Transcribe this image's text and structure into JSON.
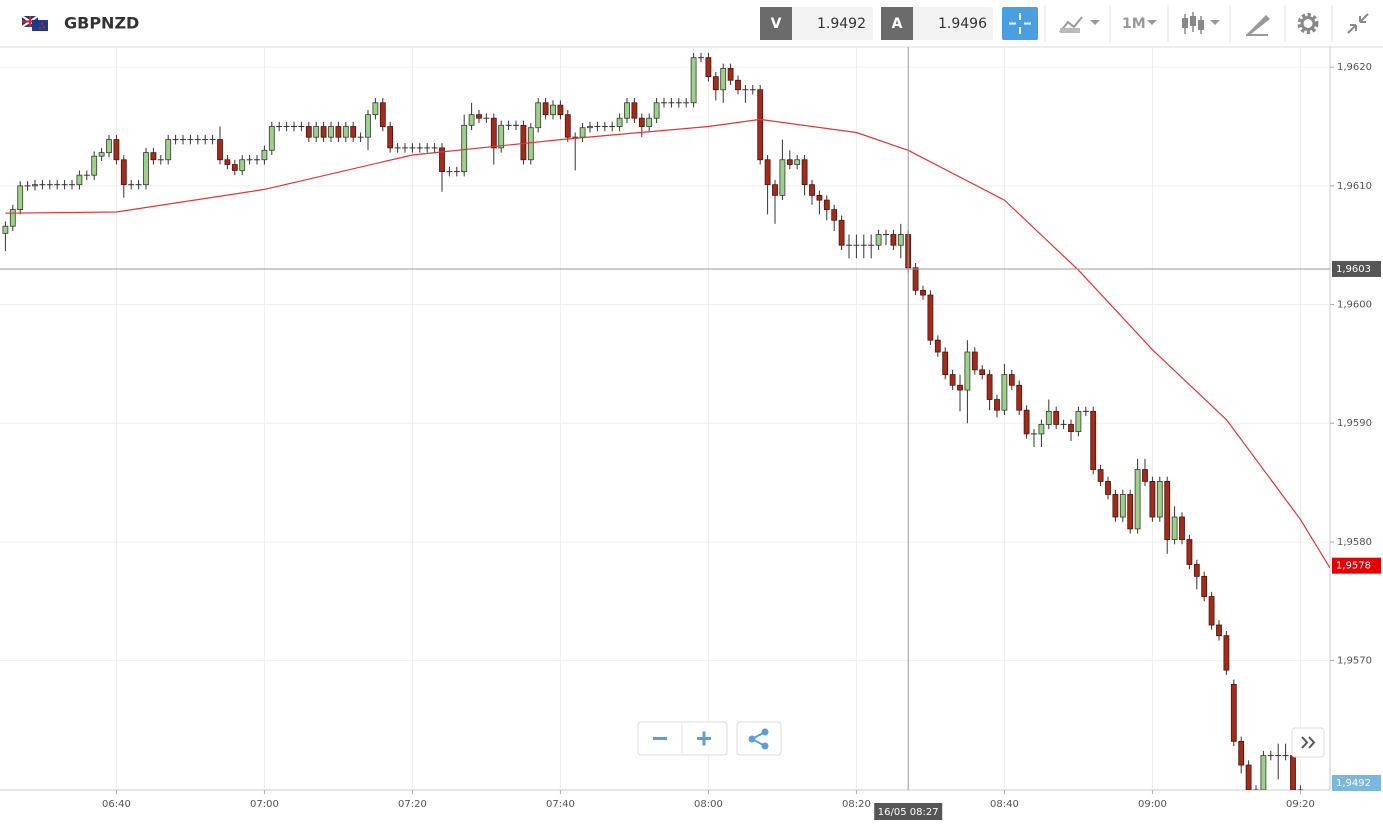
{
  "toolbar": {
    "symbol": "GBPNZD",
    "bid_label": "V",
    "bid": 1.9492,
    "ask_label": "A",
    "ask": 1.9496,
    "timeframe": "1M"
  },
  "chart_data": {
    "type": "candlestick",
    "xlim": [
      "06:24",
      "09:24"
    ],
    "xticks": [
      "06:40",
      "07:00",
      "07:20",
      "07:40",
      "08:00",
      "08:20",
      "08:40",
      "09:00",
      "09:20"
    ],
    "ylim": [
      1.95591,
      1.96217
    ],
    "yticks": [
      {
        "value": 1.962,
        "label": "1,9620"
      },
      {
        "value": 1.961,
        "label": "1,9610"
      },
      {
        "value": 1.96,
        "label": "1,9600"
      },
      {
        "value": 1.959,
        "label": "1,9590"
      },
      {
        "value": 1.958,
        "label": "1,9580"
      },
      {
        "value": 1.957,
        "label": "1,9570"
      }
    ],
    "grid": true,
    "up_color": "#9fcf8f",
    "down_color": "#a32b1b",
    "x": [
      "06:25",
      "06:26",
      "06:27",
      "06:28",
      "06:29",
      "06:30",
      "06:31",
      "06:32",
      "06:33",
      "06:34",
      "06:35",
      "06:36",
      "06:37",
      "06:38",
      "06:39",
      "06:40",
      "06:41",
      "06:42",
      "06:43",
      "06:44",
      "06:45",
      "06:46",
      "06:47",
      "06:48",
      "06:49",
      "06:50",
      "06:51",
      "06:52",
      "06:53",
      "06:54",
      "06:55",
      "06:56",
      "06:57",
      "06:58",
      "06:59",
      "07:00",
      "07:01",
      "07:02",
      "07:03",
      "07:04",
      "07:05",
      "07:06",
      "07:07",
      "07:08",
      "07:09",
      "07:10",
      "07:11",
      "07:12",
      "07:13",
      "07:14",
      "07:15",
      "07:16",
      "07:17",
      "07:18",
      "07:19",
      "07:20",
      "07:21",
      "07:22",
      "07:23",
      "07:24",
      "07:25",
      "07:26",
      "07:27",
      "07:28",
      "07:29",
      "07:30",
      "07:31",
      "07:32",
      "07:33",
      "07:34",
      "07:35",
      "07:36",
      "07:37",
      "07:38",
      "07:39",
      "07:40",
      "07:41",
      "07:42",
      "07:43",
      "07:44",
      "07:45",
      "07:46",
      "07:47",
      "07:48",
      "07:49",
      "07:50",
      "07:51",
      "07:52",
      "07:53",
      "07:54",
      "07:55",
      "07:56",
      "07:57",
      "07:58",
      "07:59",
      "08:00",
      "08:01",
      "08:02",
      "08:03",
      "08:04",
      "08:05",
      "08:06",
      "08:07",
      "08:08",
      "08:09",
      "08:10",
      "08:11",
      "08:12",
      "08:13",
      "08:14",
      "08:15",
      "08:16",
      "08:17",
      "08:18",
      "08:19",
      "08:20",
      "08:21",
      "08:22",
      "08:23",
      "08:24",
      "08:25",
      "08:26",
      "08:27",
      "08:28",
      "08:29",
      "08:30",
      "08:31",
      "08:32",
      "08:33",
      "08:34",
      "08:35",
      "08:36",
      "08:37",
      "08:38",
      "08:39",
      "08:40",
      "08:41",
      "08:42",
      "08:43",
      "08:44",
      "08:45",
      "08:46",
      "08:47",
      "08:48",
      "08:49",
      "08:50",
      "08:51",
      "08:52",
      "08:53",
      "08:54",
      "08:55",
      "08:56",
      "08:57",
      "08:58",
      "08:59",
      "09:00",
      "09:01",
      "09:02",
      "09:03",
      "09:04",
      "09:05",
      "09:06",
      "09:07",
      "09:08",
      "09:09",
      "09:10",
      "09:11",
      "09:12",
      "09:13",
      "09:14",
      "09:15",
      "09:16",
      "09:17",
      "09:18",
      "09:19",
      "09:20"
    ],
    "open": [
      1.9606,
      1.96066,
      1.9608,
      1.961,
      1.961,
      1.96101,
      1.96101,
      1.96101,
      1.96101,
      1.96101,
      1.96101,
      1.96109,
      1.96109,
      1.96125,
      1.96128,
      1.96139,
      1.96122,
      1.96101,
      1.96101,
      1.96101,
      1.96128,
      1.96122,
      1.96122,
      1.96139,
      1.96139,
      1.96139,
      1.96139,
      1.96139,
      1.96139,
      1.96139,
      1.96122,
      1.96118,
      1.96113,
      1.96122,
      1.96122,
      1.96122,
      1.9613,
      1.9615,
      1.9615,
      1.9615,
      1.9615,
      1.9615,
      1.96141,
      1.9615,
      1.96141,
      1.9615,
      1.96141,
      1.9615,
      1.96141,
      1.96141,
      1.9616,
      1.9617,
      1.9615,
      1.96132,
      1.96132,
      1.96132,
      1.96132,
      1.96132,
      1.96132,
      1.96132,
      1.96112,
      1.96112,
      1.96112,
      1.96151,
      1.9616,
      1.96157,
      1.96157,
      1.96132,
      1.96151,
      1.96151,
      1.96151,
      1.96122,
      1.96149,
      1.9617,
      1.9616,
      1.96168,
      1.9616,
      1.96141,
      1.96141,
      1.96149,
      1.9615,
      1.9615,
      1.9615,
      1.9615,
      1.96157,
      1.9617,
      1.96157,
      1.9615,
      1.96157,
      1.9617,
      1.9617,
      1.9617,
      1.9617,
      1.9617,
      1.96208,
      1.96208,
      1.96192,
      1.96181,
      1.96199,
      1.96189,
      1.96181,
      1.96181,
      1.96181,
      1.96122,
      1.96101,
      1.96092,
      1.96122,
      1.96118,
      1.96122,
      1.96101,
      1.96092,
      1.96088,
      1.9608,
      1.96071,
      1.9605,
      1.9605,
      1.9605,
      1.9605,
      1.9605,
      1.96059,
      1.96059,
      1.9605,
      1.96059,
      1.96031,
      1.96012,
      1.96008,
      1.9597,
      1.9596,
      1.95941,
      1.95932,
      1.95928,
      1.9596,
      1.95945,
      1.95941,
      1.9592,
      1.95911,
      1.95941,
      1.95932,
      1.95911,
      1.95891,
      1.95891,
      1.95899,
      1.9591,
      1.95899,
      1.95899,
      1.95893,
      1.9591,
      1.9591,
      1.95861,
      1.95851,
      1.9584,
      1.95821,
      1.9584,
      1.95811,
      1.95861,
      1.95851,
      1.95821,
      1.95851,
      1.95802,
      1.95821,
      1.95802,
      1.95781,
      1.95771,
      1.95754,
      1.9573,
      1.95721,
      1.9568,
      1.95632,
      1.95612,
      1.95591,
      1.95591,
      1.9562,
      1.9562,
      1.9562,
      1.9562,
      1.95591
    ],
    "high": [
      1.9607,
      1.96084,
      1.96104,
      1.96104,
      1.96105,
      1.96105,
      1.96105,
      1.96105,
      1.96105,
      1.96105,
      1.96113,
      1.96113,
      1.96129,
      1.96132,
      1.96143,
      1.96143,
      1.96126,
      1.96105,
      1.96105,
      1.96132,
      1.96132,
      1.96126,
      1.96143,
      1.96143,
      1.96143,
      1.96143,
      1.96143,
      1.96143,
      1.96143,
      1.9615,
      1.96126,
      1.96122,
      1.96126,
      1.96126,
      1.96126,
      1.96134,
      1.96154,
      1.96154,
      1.96154,
      1.96154,
      1.96154,
      1.96154,
      1.96154,
      1.96154,
      1.96154,
      1.96154,
      1.96154,
      1.96154,
      1.96145,
      1.96164,
      1.96174,
      1.96174,
      1.96154,
      1.96136,
      1.96136,
      1.96136,
      1.96136,
      1.96136,
      1.96136,
      1.96136,
      1.96116,
      1.96116,
      1.9616,
      1.9617,
      1.96164,
      1.96161,
      1.96161,
      1.96155,
      1.96155,
      1.96155,
      1.96155,
      1.96153,
      1.96174,
      1.96174,
      1.96172,
      1.96172,
      1.96164,
      1.96145,
      1.96153,
      1.96154,
      1.96154,
      1.96154,
      1.96154,
      1.96161,
      1.96174,
      1.96174,
      1.96161,
      1.96161,
      1.96174,
      1.96174,
      1.96174,
      1.96174,
      1.96174,
      1.96212,
      1.96212,
      1.96212,
      1.96196,
      1.96203,
      1.96203,
      1.96193,
      1.96185,
      1.96185,
      1.96185,
      1.96126,
      1.96105,
      1.96139,
      1.9613,
      1.96126,
      1.96126,
      1.96105,
      1.96096,
      1.96092,
      1.96084,
      1.96075,
      1.96059,
      1.96059,
      1.96059,
      1.96059,
      1.96063,
      1.96063,
      1.96063,
      1.96068,
      1.96063,
      1.96035,
      1.96016,
      1.96012,
      1.95974,
      1.95964,
      1.95945,
      1.95941,
      1.9597,
      1.95964,
      1.95949,
      1.95945,
      1.95924,
      1.9595,
      1.95945,
      1.95936,
      1.95915,
      1.95895,
      1.95903,
      1.9592,
      1.95914,
      1.95903,
      1.95903,
      1.95914,
      1.95914,
      1.95914,
      1.95865,
      1.95855,
      1.95844,
      1.95844,
      1.95844,
      1.9587,
      1.9587,
      1.95855,
      1.95855,
      1.95855,
      1.9583,
      1.95825,
      1.95806,
      1.95785,
      1.95775,
      1.95758,
      1.95734,
      1.95725,
      1.95684,
      1.95636,
      1.95616,
      1.95595,
      1.95624,
      1.95624,
      1.9563,
      1.9563,
      1.9563,
      1.95595
    ],
    "low": [
      1.96045,
      1.96062,
      1.96076,
      1.96096,
      1.96096,
      1.96097,
      1.96097,
      1.96097,
      1.96097,
      1.96097,
      1.96097,
      1.96105,
      1.96105,
      1.96121,
      1.96124,
      1.96118,
      1.9609,
      1.96097,
      1.96097,
      1.96097,
      1.96118,
      1.96118,
      1.96118,
      1.96135,
      1.96135,
      1.96135,
      1.96135,
      1.96135,
      1.96135,
      1.96118,
      1.96114,
      1.96109,
      1.96109,
      1.96118,
      1.96118,
      1.96118,
      1.96126,
      1.96146,
      1.96146,
      1.96146,
      1.96146,
      1.96137,
      1.96137,
      1.96137,
      1.96137,
      1.96137,
      1.96137,
      1.96137,
      1.96137,
      1.9613,
      1.96156,
      1.96146,
      1.96128,
      1.96128,
      1.96128,
      1.96128,
      1.96128,
      1.96128,
      1.96128,
      1.96095,
      1.96108,
      1.96108,
      1.96108,
      1.96147,
      1.96153,
      1.96153,
      1.96118,
      1.96128,
      1.96147,
      1.96147,
      1.96118,
      1.96118,
      1.96145,
      1.96156,
      1.96156,
      1.96156,
      1.96137,
      1.96113,
      1.96137,
      1.96145,
      1.96146,
      1.96146,
      1.96146,
      1.96146,
      1.96153,
      1.96153,
      1.96141,
      1.96146,
      1.96153,
      1.96166,
      1.96166,
      1.96166,
      1.96166,
      1.96166,
      1.96204,
      1.96188,
      1.96172,
      1.9617,
      1.96185,
      1.96177,
      1.9617,
      1.96177,
      1.96118,
      1.96076,
      1.96068,
      1.96088,
      1.96114,
      1.96114,
      1.96092,
      1.96084,
      1.96076,
      1.96071,
      1.96062,
      1.96046,
      1.96039,
      1.96039,
      1.96039,
      1.96039,
      1.96046,
      1.9605,
      1.96046,
      1.96039,
      1.96027,
      1.96008,
      1.96004,
      1.95966,
      1.95956,
      1.95937,
      1.95928,
      1.9591,
      1.959,
      1.95941,
      1.95937,
      1.95911,
      1.95905,
      1.95907,
      1.95928,
      1.95907,
      1.95887,
      1.9588,
      1.9588,
      1.95895,
      1.95895,
      1.95895,
      1.95885,
      1.95889,
      1.95906,
      1.95857,
      1.95847,
      1.95836,
      1.95817,
      1.95817,
      1.95807,
      1.95807,
      1.95847,
      1.95817,
      1.95817,
      1.9579,
      1.95798,
      1.95798,
      1.95777,
      1.9576,
      1.9575,
      1.95726,
      1.95717,
      1.95688,
      1.95628,
      1.95605,
      1.95591,
      1.95591,
      1.95591,
      1.95616,
      1.956,
      1.95616,
      1.95591,
      1.95591
    ],
    "close": [
      1.96066,
      1.9608,
      1.961,
      1.961,
      1.96101,
      1.96101,
      1.96101,
      1.96101,
      1.96101,
      1.96101,
      1.96109,
      1.96109,
      1.96125,
      1.96128,
      1.96139,
      1.96122,
      1.96101,
      1.96101,
      1.96101,
      1.96128,
      1.96122,
      1.96122,
      1.96139,
      1.96139,
      1.96139,
      1.96139,
      1.96139,
      1.96139,
      1.96139,
      1.96122,
      1.96118,
      1.96113,
      1.96122,
      1.96122,
      1.96122,
      1.9613,
      1.9615,
      1.9615,
      1.9615,
      1.9615,
      1.9615,
      1.96141,
      1.9615,
      1.96141,
      1.9615,
      1.96141,
      1.9615,
      1.96141,
      1.96141,
      1.9616,
      1.9617,
      1.9615,
      1.96132,
      1.96132,
      1.96132,
      1.96132,
      1.96132,
      1.96132,
      1.96132,
      1.96112,
      1.96112,
      1.96112,
      1.96151,
      1.9616,
      1.96157,
      1.96157,
      1.96132,
      1.96151,
      1.96151,
      1.96151,
      1.96122,
      1.96149,
      1.9617,
      1.9616,
      1.96168,
      1.9616,
      1.96141,
      1.96141,
      1.96149,
      1.9615,
      1.9615,
      1.9615,
      1.9615,
      1.96157,
      1.9617,
      1.96157,
      1.9615,
      1.96157,
      1.9617,
      1.9617,
      1.9617,
      1.9617,
      1.9617,
      1.96208,
      1.96208,
      1.96192,
      1.96181,
      1.96199,
      1.96189,
      1.96181,
      1.96181,
      1.96181,
      1.96122,
      1.96101,
      1.96092,
      1.96122,
      1.96118,
      1.96122,
      1.96101,
      1.96092,
      1.96088,
      1.9608,
      1.96071,
      1.9605,
      1.9605,
      1.9605,
      1.9605,
      1.9605,
      1.96059,
      1.96059,
      1.9605,
      1.96059,
      1.96031,
      1.96012,
      1.96008,
      1.9597,
      1.9596,
      1.95941,
      1.95932,
      1.95928,
      1.9596,
      1.95945,
      1.95941,
      1.9592,
      1.95911,
      1.95941,
      1.95932,
      1.95911,
      1.95891,
      1.95891,
      1.95899,
      1.9591,
      1.95899,
      1.95899,
      1.95893,
      1.9591,
      1.9591,
      1.95861,
      1.95851,
      1.9584,
      1.95821,
      1.9584,
      1.95811,
      1.95861,
      1.95851,
      1.95821,
      1.95851,
      1.95802,
      1.95821,
      1.95802,
      1.95781,
      1.95771,
      1.95754,
      1.9573,
      1.95721,
      1.95692,
      1.95632,
      1.95612,
      1.95591,
      1.95591,
      1.9562,
      1.9562,
      1.9562,
      1.9562,
      1.95591,
      1.95591
    ],
    "moving_average": {
      "color": "#e03535",
      "x": [
        "06:25",
        "06:40",
        "07:00",
        "07:20",
        "07:40",
        "08:00",
        "08:07",
        "08:20",
        "08:27",
        "08:40",
        "08:50",
        "09:00",
        "09:10",
        "09:20",
        "09:24"
      ],
      "values": [
        1.96077,
        1.96078,
        1.96097,
        1.96126,
        1.96139,
        1.9615,
        1.96156,
        1.96145,
        1.9613,
        1.96088,
        1.96029,
        1.95962,
        1.95903,
        1.95819,
        1.95778
      ],
      "last_label": {
        "value": 1.9578,
        "label": "1,9578"
      }
    },
    "crosshair": {
      "x": "08:27",
      "y": 1.9603,
      "x_label": "16/05 08:27",
      "y_label": "1,9603"
    },
    "last_price_label": {
      "value": 1.9492,
      "label": "1,9492"
    }
  }
}
